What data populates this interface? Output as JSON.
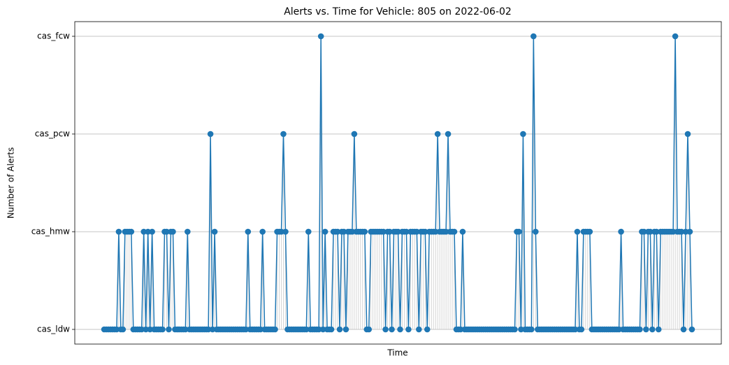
{
  "chart_data": {
    "type": "line",
    "title": "Alerts vs. Time for Vehicle: 805 on 2022-06-02",
    "x_label": "Time",
    "y_label": "Number of Alerts",
    "series": [
      {
        "name": "alerts",
        "color": "#1f77b4",
        "values": [
          0,
          0,
          0,
          0,
          0,
          0,
          0,
          1,
          0,
          0,
          1,
          1,
          1,
          1,
          0,
          0,
          0,
          0,
          0,
          1,
          0,
          1,
          0,
          1,
          0,
          0,
          0,
          0,
          0,
          1,
          1,
          0,
          1,
          1,
          0,
          0,
          0,
          0,
          0,
          0,
          1,
          0,
          0,
          0,
          0,
          0,
          0,
          0,
          0,
          0,
          0,
          2,
          0,
          1,
          0,
          0,
          0,
          0,
          0,
          0,
          0,
          0,
          0,
          0,
          0,
          0,
          0,
          0,
          0,
          1,
          0,
          0,
          0,
          0,
          0,
          0,
          1,
          0,
          0,
          0,
          0,
          0,
          0,
          1,
          1,
          1,
          2,
          1,
          0,
          0,
          0,
          0,
          0,
          0,
          0,
          0,
          0,
          0,
          1,
          0,
          0,
          0,
          0,
          0,
          3,
          0,
          1,
          0,
          0,
          0,
          1,
          1,
          1,
          0,
          1,
          1,
          0,
          1,
          1,
          1,
          2,
          1,
          1,
          1,
          1,
          1,
          0,
          0,
          1,
          1,
          1,
          1,
          1,
          1,
          1,
          0,
          1,
          1,
          0,
          1,
          1,
          1,
          0,
          1,
          1,
          1,
          0,
          1,
          1,
          1,
          1,
          0,
          1,
          1,
          1,
          0,
          1,
          1,
          1,
          1,
          2,
          1,
          1,
          1,
          1,
          2,
          1,
          1,
          1,
          0,
          0,
          0,
          1,
          0,
          0,
          0,
          0,
          0,
          0,
          0,
          0,
          0,
          0,
          0,
          0,
          0,
          0,
          0,
          0,
          0,
          0,
          0,
          0,
          0,
          0,
          0,
          0,
          0,
          1,
          1,
          0,
          2,
          0,
          0,
          0,
          0,
          3,
          1,
          0,
          0,
          0,
          0,
          0,
          0,
          0,
          0,
          0,
          0,
          0,
          0,
          0,
          0,
          0,
          0,
          0,
          0,
          0,
          1,
          0,
          0,
          1,
          1,
          1,
          1,
          0,
          0,
          0,
          0,
          0,
          0,
          0,
          0,
          0,
          0,
          0,
          0,
          0,
          0,
          1,
          0,
          0,
          0,
          0,
          0,
          0,
          0,
          0,
          0,
          1,
          1,
          0,
          1,
          1,
          0,
          1,
          1,
          0,
          1,
          1,
          1,
          1,
          1,
          1,
          1,
          3,
          1,
          1,
          1,
          0,
          1,
          2,
          1,
          0
        ]
      }
    ],
    "stem_color": "#bbbbbb",
    "ylim": [
      -0.15,
      3.15
    ],
    "yticks": [
      {
        "value": 0,
        "label": "cas_ldw"
      },
      {
        "value": 1,
        "label": "cas_hmw"
      },
      {
        "value": 2,
        "label": "cas_pcw"
      },
      {
        "value": 3,
        "label": "cas_fcw"
      }
    ],
    "grid": true
  }
}
